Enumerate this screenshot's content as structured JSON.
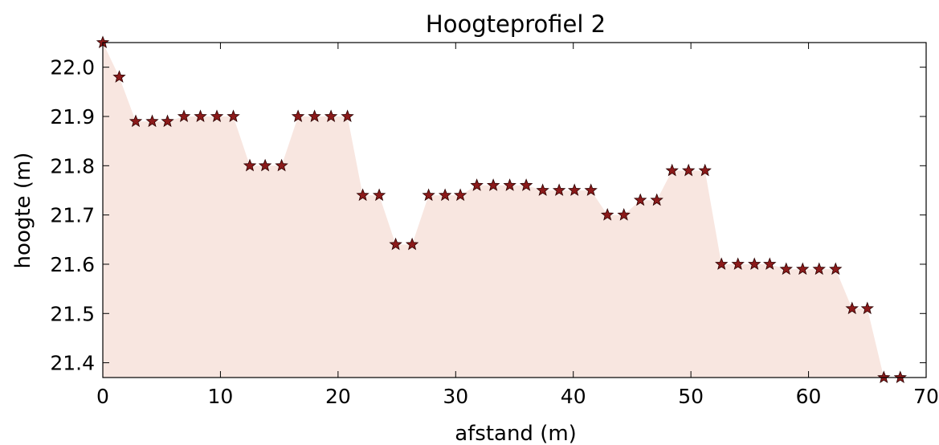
{
  "chart_data": {
    "type": "area",
    "title": "Hoogteprofiel 2",
    "xlabel": "afstand (m)",
    "ylabel": "hoogte (m)",
    "xlim": [
      0,
      70
    ],
    "ylim": [
      21.37,
      22.05
    ],
    "xticks": [
      0,
      10,
      20,
      30,
      40,
      50,
      60,
      70
    ],
    "yticks": [
      21.4,
      21.5,
      21.6,
      21.7,
      21.8,
      21.9,
      22.0
    ],
    "xtick_labels": [
      "0",
      "10",
      "20",
      "30",
      "40",
      "50",
      "60",
      "70"
    ],
    "ytick_labels": [
      "21.4",
      "21.5",
      "21.6",
      "21.7",
      "21.8",
      "21.9",
      "22.0"
    ],
    "grid": false,
    "fill_color": "#f8e6e0",
    "marker_color": "#8b1a1a",
    "marker": "star",
    "series": [
      {
        "x": [
          0,
          1.4,
          2.8,
          4.2,
          5.5,
          6.9,
          8.3,
          9.7,
          11.1,
          12.5,
          13.8,
          15.2,
          16.6,
          18.0,
          19.4,
          20.8,
          22.1,
          23.5,
          24.9,
          26.3,
          27.7,
          29.1,
          30.4,
          31.8,
          33.2,
          34.6,
          36.0,
          37.4,
          38.8,
          40.1,
          41.5,
          42.9,
          44.3,
          45.7,
          47.1,
          48.4,
          49.8,
          51.2,
          52.6,
          54.0,
          55.4,
          56.7,
          58.1,
          59.5,
          60.9,
          62.3,
          63.7,
          65.0,
          66.4,
          67.8
        ],
        "y": [
          22.05,
          21.98,
          21.89,
          21.89,
          21.89,
          21.9,
          21.9,
          21.9,
          21.9,
          21.8,
          21.8,
          21.8,
          21.9,
          21.9,
          21.9,
          21.9,
          21.74,
          21.74,
          21.64,
          21.64,
          21.74,
          21.74,
          21.74,
          21.76,
          21.76,
          21.76,
          21.76,
          21.75,
          21.75,
          21.75,
          21.75,
          21.7,
          21.7,
          21.73,
          21.73,
          21.79,
          21.79,
          21.79,
          21.6,
          21.6,
          21.6,
          21.6,
          21.59,
          21.59,
          21.59,
          21.59,
          21.51,
          21.51,
          21.37,
          21.37
        ]
      }
    ]
  }
}
